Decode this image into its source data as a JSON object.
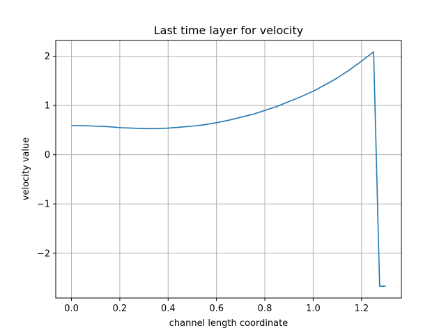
{
  "chart_data": {
    "type": "line",
    "title": "Last time layer for velocity",
    "xlabel": "channel length coordinate",
    "ylabel": "velocity value",
    "xlim": [
      -0.065,
      1.365
    ],
    "ylim": [
      -2.91,
      2.32
    ],
    "grid": true,
    "xticks": [
      0.0,
      0.2,
      0.4,
      0.6,
      0.8,
      1.0,
      1.2
    ],
    "xtick_labels": [
      "0.0",
      "0.2",
      "0.4",
      "0.6",
      "0.8",
      "1.0",
      "1.2"
    ],
    "yticks": [
      -2,
      -1,
      0,
      1,
      2
    ],
    "ytick_labels": [
      "−2",
      "−1",
      "0",
      "1",
      "2"
    ],
    "series": [
      {
        "color": "#1f77b4",
        "x": [
          0.0,
          0.05,
          0.1,
          0.15,
          0.2,
          0.25,
          0.3,
          0.35,
          0.4,
          0.45,
          0.5,
          0.55,
          0.6,
          0.65,
          0.7,
          0.75,
          0.8,
          0.85,
          0.9,
          0.95,
          1.0,
          1.05,
          1.1,
          1.15,
          1.2,
          1.25,
          1.275,
          1.3
        ],
        "y": [
          0.59,
          0.59,
          0.58,
          0.57,
          0.55,
          0.54,
          0.53,
          0.53,
          0.54,
          0.56,
          0.58,
          0.61,
          0.65,
          0.7,
          0.76,
          0.82,
          0.9,
          0.98,
          1.08,
          1.18,
          1.29,
          1.42,
          1.56,
          1.72,
          1.9,
          2.09,
          -2.67,
          -2.67
        ]
      }
    ]
  }
}
